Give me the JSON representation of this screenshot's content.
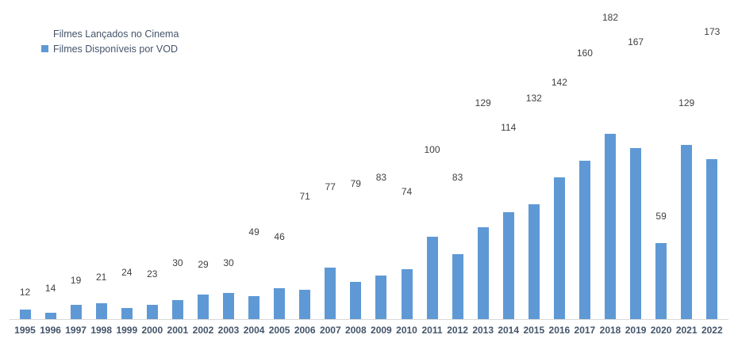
{
  "chart_data": {
    "type": "bar",
    "subtype": "overlaid",
    "title": "",
    "xlabel": "",
    "ylabel": "",
    "grid": false,
    "axes_visible": false,
    "value_labels": true,
    "legend_position": "top-left",
    "ylim": [
      0,
      190
    ],
    "categories": [
      "1995",
      "1996",
      "1997",
      "1998",
      "1999",
      "2000",
      "2001",
      "2002",
      "2003",
      "2004",
      "2005",
      "2006",
      "2007",
      "2008",
      "2009",
      "2010",
      "2011",
      "2012",
      "2013",
      "2014",
      "2015",
      "2016",
      "2017",
      "2018",
      "2019",
      "2020",
      "2021",
      "2022"
    ],
    "series": [
      {
        "name": "Filmes Lançados no Cinema",
        "color": "#17python2B4B",
        "label_color": "#404040",
        "values": [
          12,
          14,
          19,
          21,
          24,
          23,
          30,
          29,
          30,
          49,
          46,
          71,
          77,
          79,
          83,
          74,
          100,
          83,
          129,
          114,
          132,
          142,
          160,
          182,
          167,
          59,
          129,
          173
        ]
      },
      {
        "name": "Filmes Disponíveis por VOD",
        "color": "#5F99D5",
        "label_color": "#FFFFFF",
        "values": [
          6,
          4,
          9,
          10,
          7,
          9,
          12,
          15,
          16,
          14,
          19,
          18,
          32,
          23,
          27,
          31,
          51,
          40,
          57,
          66,
          71,
          88,
          98,
          115,
          106,
          47,
          108,
          99
        ]
      }
    ]
  },
  "colors": {
    "background": "#FFFFFF",
    "navy_bar": "#17python2B4B",
    "blue_bar": "#5F99D5",
    "value_label": "#404040",
    "inside_label": "#FFFFFF",
    "axis_label": "#44546A",
    "baseline": "#D9D9D9",
    "legend_text": "#44546A"
  }
}
